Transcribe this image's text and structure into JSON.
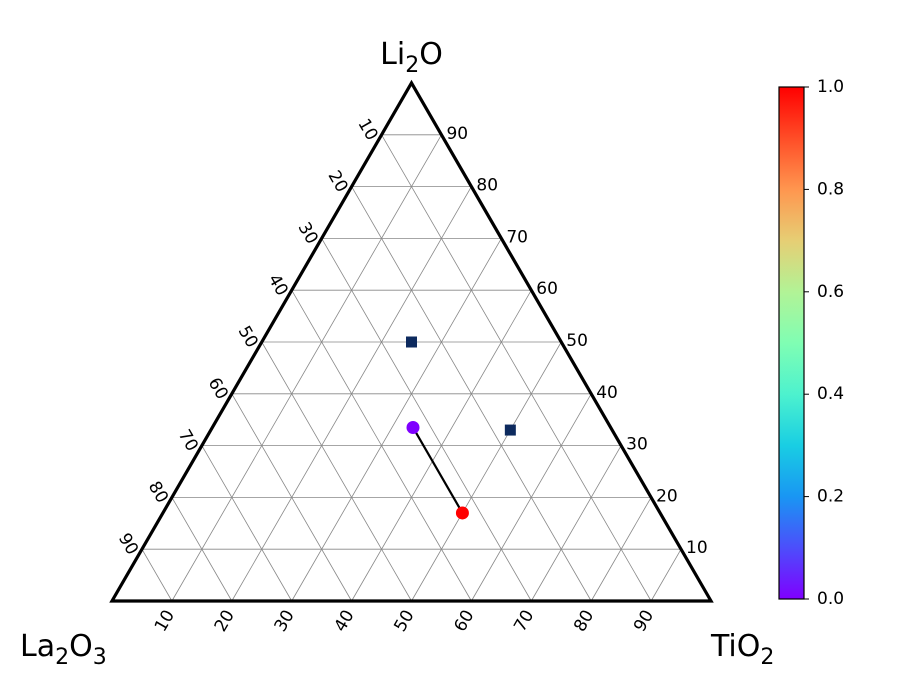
{
  "chart_data": {
    "type": "ternary-scatter",
    "corners": {
      "top": {
        "base": "Li",
        "sub": "2",
        "tail": "O"
      },
      "left": {
        "base": "La",
        "sub": "2",
        "tail": "O",
        "sub2": "3"
      },
      "right": {
        "base": "TiO",
        "sub": "2",
        "tail": ""
      }
    },
    "left_axis_ticks": [
      "10",
      "20",
      "30",
      "40",
      "50",
      "60",
      "70",
      "80",
      "90"
    ],
    "right_axis_ticks": [
      "90",
      "80",
      "70",
      "60",
      "50",
      "40",
      "30",
      "20",
      "10"
    ],
    "bottom_axis_ticks": [
      "10",
      "20",
      "30",
      "40",
      "50",
      "60",
      "70",
      "80",
      "90"
    ],
    "grid": true,
    "points": [
      {
        "marker": "square",
        "li2o": 50,
        "tio2": 25,
        "la2o3": 25,
        "color": "#0d2a5e"
      },
      {
        "marker": "square",
        "li2o": 33,
        "tio2": 50,
        "la2o3": 17,
        "color": "#0d2a5e"
      },
      {
        "marker": "circle",
        "li2o": 33.5,
        "tio2": 33.5,
        "la2o3": 33,
        "color": "#7f00ff",
        "value": 0.0
      },
      {
        "marker": "circle",
        "li2o": 17,
        "tio2": 50,
        "la2o3": 33,
        "color": "#ff0000",
        "value": 1.0
      }
    ],
    "path": [
      {
        "li2o": 33.5,
        "tio2": 33.5,
        "la2o3": 33
      },
      {
        "li2o": 17,
        "tio2": 50,
        "la2o3": 33
      }
    ],
    "colorbar": {
      "colormap": "rainbow",
      "range": [
        0.0,
        1.0
      ],
      "ticks": [
        "0.0",
        "0.2",
        "0.4",
        "0.6",
        "0.8",
        "1.0"
      ]
    }
  }
}
